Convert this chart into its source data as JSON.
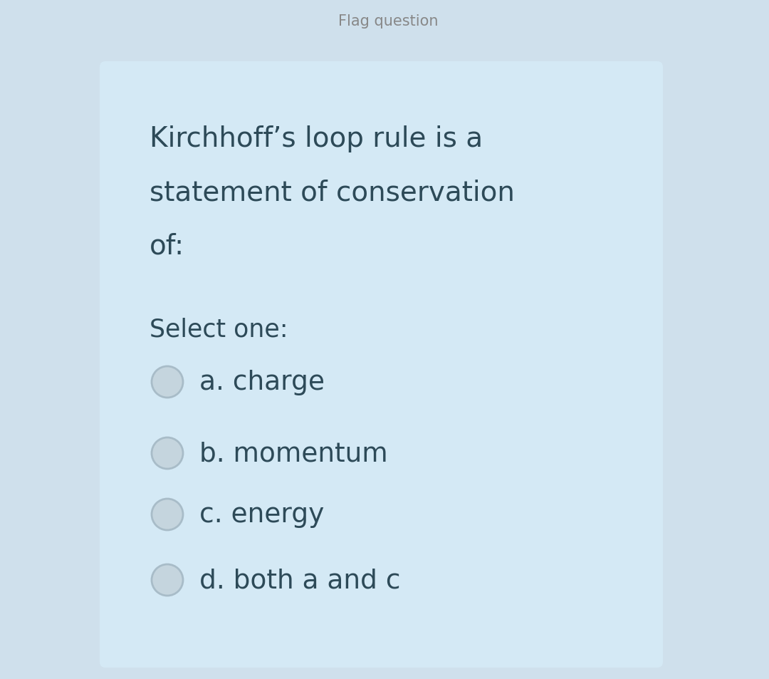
{
  "bg_outer": "#cfe0ec",
  "bg_white_strip": "#f0f0f0",
  "bg_card": "#d4e9f5",
  "text_dark": "#3a5a6a",
  "text_question": "#2d4a58",
  "radio_fill": "#c5d5de",
  "radio_edge": "#a8bcc8",
  "question_lines": [
    "Kirchhoff’s loop rule is a",
    "statement of conservation",
    "of:"
  ],
  "select_label": "Select one:",
  "options": [
    "a. charge",
    "b. momentum",
    "c. energy",
    "d. both a and c"
  ],
  "fig_width": 10.8,
  "fig_height": 9.54,
  "dpi": 100,
  "top_bar_color": "#d8d8d8",
  "top_bar_text_color": "#888888",
  "top_bar_text": "Flag question"
}
